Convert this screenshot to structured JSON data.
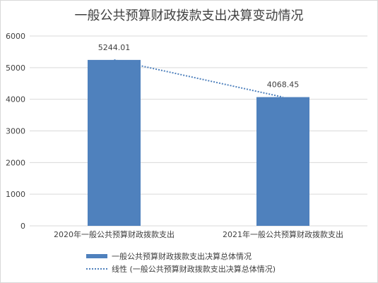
{
  "chart_data": {
    "type": "bar",
    "title": "一般公共预算财政拨款支出决算变动情况",
    "categories": [
      "2020年一般公共预算财政拨款支出",
      "2021年一般公共预算财政拨款支出"
    ],
    "series": [
      {
        "name": "一般公共预算财政拨款支出决算总体情况",
        "values": [
          5244.01,
          4068.45
        ],
        "data_labels": [
          "5244.01",
          "4068.45"
        ]
      }
    ],
    "trendline": {
      "name": "线性 (一般公共预算财政拨款支出决算总体情况)",
      "style": "dotted"
    },
    "ylim": [
      0,
      6000
    ],
    "yticks": [
      "0",
      "1000",
      "2000",
      "3000",
      "4000",
      "5000",
      "6000"
    ],
    "grid": true,
    "legend_position": "bottom",
    "colors": {
      "bar": "#4f81bd",
      "grid": "#d9d9d9",
      "text": "#404040"
    }
  }
}
